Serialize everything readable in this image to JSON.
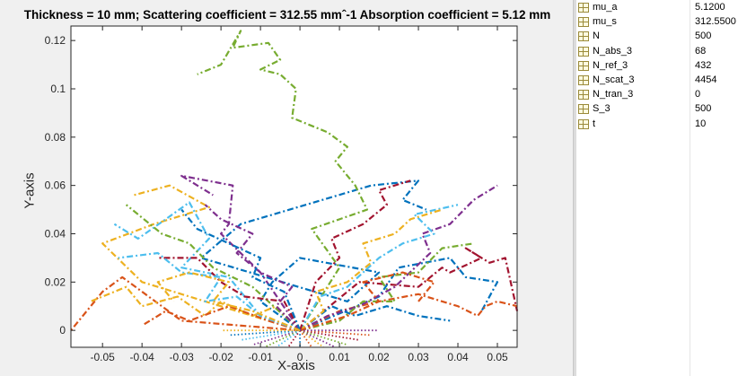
{
  "figure": {
    "title": "Thickness = 10 mm; Scattering coefficient = 312.55 mmˆ-1 Absorption coefficient = 5.12 mm"
  },
  "chart_data": {
    "type": "line",
    "title": "Thickness = 10 mm; Scattering coefficient = 312.55 mmˆ-1 Absorption coefficient = 5.12 mm",
    "xlabel": "X-axis",
    "ylabel": "Y-axis",
    "xlim": [
      -0.058,
      0.055
    ],
    "ylim": [
      -0.007,
      0.126
    ],
    "xticks": [
      -0.05,
      -0.04,
      -0.03,
      -0.02,
      -0.01,
      0,
      0.01,
      0.02,
      0.03,
      0.04,
      0.05
    ],
    "xtick_labels": [
      "-0.05",
      "-0.04",
      "-0.03",
      "-0.02",
      "-0.01",
      "0",
      "0.01",
      "0.02",
      "0.03",
      "0.04",
      "0.05"
    ],
    "yticks": [
      0,
      0.02,
      0.04,
      0.06,
      0.08,
      0.1,
      0.12
    ],
    "ytick_labels": [
      "0",
      "0.02",
      "0.04",
      "0.06",
      "0.08",
      "0.1",
      "0.12"
    ],
    "grid": false,
    "line_style": "dash-dot",
    "colors": [
      "#0072bd",
      "#d95319",
      "#edb120",
      "#7e2f8e",
      "#77ac30",
      "#4dbeee",
      "#a2142f"
    ],
    "series": [
      {
        "x": [
          0.0,
          -0.01,
          -0.007,
          0.0,
          0.02,
          0.012,
          -0.025,
          -0.015,
          0.018,
          0.03,
          0.026,
          0.032
        ],
        "y": [
          0.0,
          0.012,
          0.02,
          0.03,
          0.024,
          0.012,
          0.03,
          0.044,
          0.06,
          0.062,
          0.054,
          0.05
        ]
      },
      {
        "x": [
          0.0,
          -0.03,
          -0.045,
          -0.05,
          -0.058
        ],
        "y": [
          0.0,
          0.004,
          0.022,
          0.016,
          0.0
        ]
      },
      {
        "x": [
          0.0,
          -0.04,
          -0.05,
          -0.037,
          -0.023,
          -0.033,
          -0.042
        ],
        "y": [
          0.0,
          0.02,
          0.036,
          0.044,
          0.051,
          0.06,
          0.056
        ]
      },
      {
        "x": [
          0.0,
          -0.01,
          -0.02,
          -0.018,
          -0.017,
          -0.03,
          -0.022
        ],
        "y": [
          0.0,
          0.024,
          0.04,
          0.044,
          0.06,
          0.064,
          0.056
        ]
      },
      {
        "x": [
          0.0,
          0.01,
          0.003,
          0.017,
          0.014,
          0.009,
          0.012,
          0.007,
          -0.002,
          -0.001,
          -0.005,
          -0.01,
          -0.005,
          -0.008,
          -0.017,
          -0.015,
          -0.02,
          -0.026
        ],
        "y": [
          0.0,
          0.026,
          0.042,
          0.05,
          0.06,
          0.07,
          0.076,
          0.082,
          0.088,
          0.1,
          0.106,
          0.108,
          0.112,
          0.119,
          0.117,
          0.124,
          0.11,
          0.106
        ]
      },
      {
        "x": [
          0.0,
          -0.01,
          -0.018,
          -0.03,
          -0.023,
          -0.028,
          -0.034,
          -0.041,
          -0.047
        ],
        "y": [
          0.0,
          0.006,
          0.022,
          0.026,
          0.038,
          0.053,
          0.046,
          0.038,
          0.044
        ]
      },
      {
        "x": [
          0.0,
          0.015,
          0.03,
          0.036,
          0.038,
          0.046,
          0.042,
          0.048,
          0.052,
          0.055
        ],
        "y": [
          0.0,
          0.02,
          0.018,
          0.026,
          0.024,
          0.03,
          0.034,
          0.028,
          0.03,
          0.008
        ]
      },
      {
        "x": [
          0.0,
          0.02,
          0.025,
          0.038,
          0.042,
          0.05,
          0.046
        ],
        "y": [
          0.0,
          0.014,
          0.026,
          0.03,
          0.022,
          0.02,
          0.008
        ]
      },
      {
        "x": [
          0.0,
          0.01,
          0.02,
          0.03,
          0.04,
          0.045,
          0.047,
          0.05,
          0.055
        ],
        "y": [
          0.0,
          0.008,
          0.012,
          0.015,
          0.01,
          0.006,
          0.01,
          0.012,
          0.01
        ]
      },
      {
        "x": [
          0.0,
          -0.006,
          -0.012,
          -0.02,
          -0.024,
          -0.031,
          -0.04,
          -0.044,
          -0.053
        ],
        "y": [
          0.0,
          0.01,
          0.006,
          0.012,
          0.006,
          0.014,
          0.01,
          0.018,
          0.012
        ]
      },
      {
        "x": [
          0.0,
          0.007,
          0.015,
          0.024,
          0.033,
          0.031,
          0.038,
          0.044,
          0.05
        ],
        "y": [
          0.0,
          0.006,
          0.01,
          0.018,
          0.032,
          0.04,
          0.044,
          0.054,
          0.06
        ]
      },
      {
        "x": [
          0.0,
          -0.012,
          -0.022,
          -0.028,
          -0.035,
          -0.044
        ],
        "y": [
          0.0,
          0.018,
          0.026,
          0.036,
          0.04,
          0.052
        ]
      },
      {
        "x": [
          0.0,
          0.005,
          0.012,
          0.02,
          0.026,
          0.034,
          0.029,
          0.04
        ],
        "y": [
          0.0,
          0.014,
          0.018,
          0.03,
          0.036,
          0.04,
          0.048,
          0.052
        ]
      },
      {
        "x": [
          0.0,
          -0.004,
          -0.014,
          -0.02,
          -0.026,
          -0.036
        ],
        "y": [
          0.0,
          0.012,
          0.014,
          0.02,
          0.03,
          0.03
        ]
      },
      {
        "x": [
          0.0,
          0.008,
          0.014,
          0.022,
          0.03,
          0.038
        ],
        "y": [
          0.0,
          0.01,
          0.006,
          0.01,
          0.006,
          0.004
        ]
      },
      {
        "x": [
          0.0,
          -0.008,
          -0.018,
          -0.028,
          -0.034,
          -0.04
        ],
        "y": [
          0.0,
          0.004,
          0.01,
          0.004,
          0.008,
          0.002
        ]
      },
      {
        "x": [
          0.0,
          0.006,
          0.004,
          0.012,
          0.018,
          0.016,
          0.024,
          0.028,
          0.036
        ],
        "y": [
          0.0,
          0.008,
          0.016,
          0.02,
          0.028,
          0.036,
          0.04,
          0.046,
          0.05
        ]
      },
      {
        "x": [
          0.0,
          -0.006,
          -0.002,
          -0.01,
          -0.016,
          -0.012,
          -0.02,
          -0.024
        ],
        "y": [
          0.0,
          0.01,
          0.018,
          0.024,
          0.032,
          0.04,
          0.046,
          0.052
        ]
      },
      {
        "x": [
          0.0,
          0.01,
          0.016,
          0.024,
          0.02,
          0.03,
          0.036,
          0.044
        ],
        "y": [
          0.0,
          0.004,
          0.012,
          0.012,
          0.022,
          0.024,
          0.034,
          0.036
        ]
      },
      {
        "x": [
          0.0,
          -0.01,
          -0.016,
          -0.024,
          -0.02,
          -0.03,
          -0.036,
          -0.046
        ],
        "y": [
          0.0,
          0.006,
          0.014,
          0.012,
          0.022,
          0.024,
          0.032,
          0.03
        ]
      },
      {
        "x": [
          0.0,
          0.004,
          0.01,
          0.008,
          0.016,
          0.022,
          0.02,
          0.028
        ],
        "y": [
          0.0,
          0.02,
          0.03,
          0.038,
          0.044,
          0.052,
          0.058,
          0.062
        ]
      },
      {
        "x": [
          0.0,
          -0.004,
          -0.012,
          -0.01,
          -0.018,
          -0.026,
          -0.03
        ],
        "y": [
          0.0,
          0.016,
          0.022,
          0.03,
          0.036,
          0.042,
          0.05
        ]
      },
      {
        "x": [
          0.0,
          0.012,
          0.02,
          0.016,
          0.026,
          0.034,
          0.03
        ],
        "y": [
          0.0,
          0.006,
          0.012,
          0.02,
          0.024,
          0.02,
          0.012
        ]
      },
      {
        "x": [
          0.0,
          -0.012,
          -0.022,
          -0.018,
          -0.028,
          -0.036,
          -0.032
        ],
        "y": [
          0.0,
          0.008,
          0.012,
          0.02,
          0.024,
          0.02,
          0.012
        ]
      }
    ],
    "escape_rays": [
      {
        "x": [
          0.0,
          -0.012
        ],
        "y": [
          0.0,
          -0.006
        ]
      },
      {
        "x": [
          0.0,
          -0.009
        ],
        "y": [
          0.0,
          -0.007
        ]
      },
      {
        "x": [
          0.0,
          -0.006
        ],
        "y": [
          0.0,
          -0.007
        ]
      },
      {
        "x": [
          0.0,
          -0.003
        ],
        "y": [
          0.0,
          -0.007
        ]
      },
      {
        "x": [
          0.0,
          0.0
        ],
        "y": [
          0.0,
          -0.007
        ]
      },
      {
        "x": [
          0.0,
          0.003
        ],
        "y": [
          0.0,
          -0.007
        ]
      },
      {
        "x": [
          0.0,
          0.006
        ],
        "y": [
          0.0,
          -0.007
        ]
      },
      {
        "x": [
          0.0,
          0.009
        ],
        "y": [
          0.0,
          -0.007
        ]
      },
      {
        "x": [
          0.0,
          0.012
        ],
        "y": [
          0.0,
          -0.006
        ]
      },
      {
        "x": [
          0.0,
          -0.015
        ],
        "y": [
          0.0,
          -0.004
        ]
      },
      {
        "x": [
          0.0,
          0.015
        ],
        "y": [
          0.0,
          -0.004
        ]
      },
      {
        "x": [
          0.0,
          -0.018
        ],
        "y": [
          0.0,
          -0.002
        ]
      },
      {
        "x": [
          0.0,
          0.018
        ],
        "y": [
          0.0,
          -0.002
        ]
      },
      {
        "x": [
          0.0,
          -0.02
        ],
        "y": [
          0.0,
          0.0
        ]
      },
      {
        "x": [
          0.0,
          0.02
        ],
        "y": [
          0.0,
          0.0
        ]
      }
    ]
  },
  "workspace": {
    "rows": [
      {
        "name": "mu_a",
        "value": "5.1200"
      },
      {
        "name": "mu_s",
        "value": "312.5500"
      },
      {
        "name": "N",
        "value": "500"
      },
      {
        "name": "N_abs_3",
        "value": "68"
      },
      {
        "name": "N_ref_3",
        "value": "432"
      },
      {
        "name": "N_scat_3",
        "value": "4454"
      },
      {
        "name": "N_tran_3",
        "value": "0"
      },
      {
        "name": "S_3",
        "value": "500"
      },
      {
        "name": "t",
        "value": "10"
      }
    ]
  }
}
